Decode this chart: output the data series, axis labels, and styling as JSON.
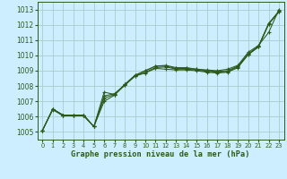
{
  "title": "Graphe pression niveau de la mer (hPa)",
  "bg_color": "#cceeff",
  "grid_color": "#aacccc",
  "line_color": "#2d5a1b",
  "marker_color": "#2d5a1b",
  "xlim": [
    -0.5,
    23.5
  ],
  "ylim": [
    1004.5,
    1013.5
  ],
  "xticks": [
    0,
    1,
    2,
    3,
    4,
    5,
    6,
    7,
    8,
    9,
    10,
    11,
    12,
    13,
    14,
    15,
    16,
    17,
    18,
    19,
    20,
    21,
    22,
    23
  ],
  "yticks": [
    1005,
    1006,
    1007,
    1008,
    1009,
    1010,
    1011,
    1012,
    1013
  ],
  "series": [
    [
      1005.1,
      1006.5,
      1006.1,
      1006.1,
      1006.1,
      1005.35,
      1007.35,
      1007.5,
      1008.05,
      1008.65,
      1008.85,
      1009.15,
      1009.1,
      1009.05,
      1009.05,
      1009.0,
      1008.9,
      1008.85,
      1008.9,
      1009.2,
      1010.05,
      1010.55,
      1012.05,
      1012.85
    ],
    [
      1005.1,
      1006.5,
      1006.1,
      1006.1,
      1006.1,
      1005.35,
      1007.6,
      1007.45,
      1008.1,
      1008.7,
      1009.0,
      1009.3,
      1009.3,
      1009.15,
      1009.15,
      1009.1,
      1009.0,
      1008.95,
      1009.0,
      1009.3,
      1010.1,
      1010.6,
      1012.1,
      1012.9
    ],
    [
      1005.1,
      1006.5,
      1006.1,
      1006.1,
      1006.1,
      1005.35,
      1007.0,
      1007.4,
      1008.05,
      1008.65,
      1008.9,
      1009.2,
      1009.25,
      1009.1,
      1009.1,
      1009.05,
      1008.95,
      1008.9,
      1008.95,
      1009.25,
      1010.05,
      1010.55,
      1012.05,
      1012.85
    ],
    [
      1005.1,
      1006.45,
      1006.05,
      1006.05,
      1006.05,
      1005.35,
      1007.2,
      1007.45,
      1008.1,
      1008.7,
      1009.0,
      1009.3,
      1009.35,
      1009.2,
      1009.2,
      1009.1,
      1009.05,
      1009.0,
      1009.1,
      1009.35,
      1010.2,
      1010.65,
      1011.5,
      1013.0
    ]
  ]
}
